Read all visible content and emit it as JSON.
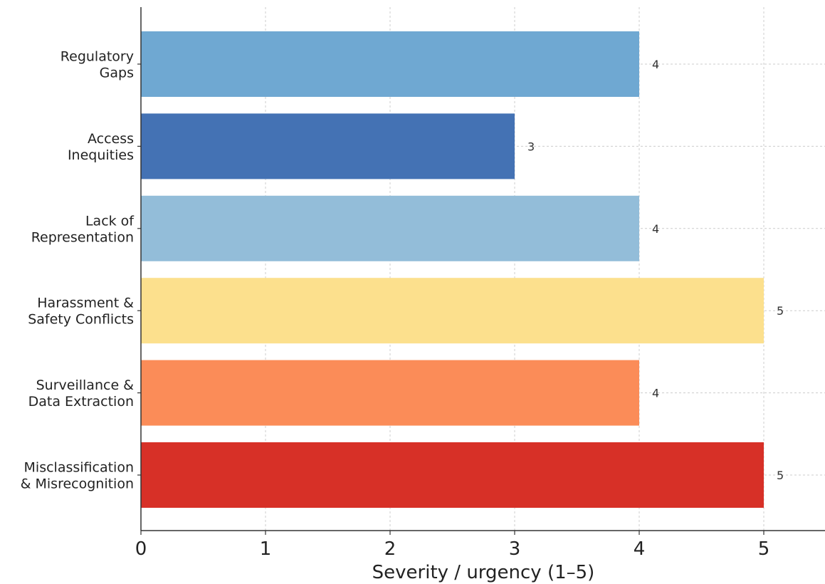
{
  "chart_data": {
    "type": "bar",
    "orientation": "horizontal",
    "categories": [
      "Regulatory\nGaps",
      "Access\nInequities",
      "Lack of\nRepresentation",
      "Harassment &\nSafety Conflicts",
      "Surveillance &\nData Extraction",
      "Misclassification\n& Misrecognition"
    ],
    "values": [
      4,
      3,
      4,
      5,
      4,
      5
    ],
    "data_labels": [
      "4",
      "3",
      "4",
      "5",
      "4",
      "5"
    ],
    "colors": [
      "#6fa8d2",
      "#4472b4",
      "#93bdd9",
      "#fce08d",
      "#fb8c58",
      "#d73027"
    ],
    "xlabel": "Severity / urgency (1–5)",
    "ylabel": "",
    "xlim": [
      0,
      5.5
    ],
    "xticks": [
      0,
      1,
      2,
      3,
      4,
      5
    ],
    "xtick_labels": [
      "0",
      "1",
      "2",
      "3",
      "4",
      "5"
    ],
    "grid": true,
    "legend": "none"
  }
}
